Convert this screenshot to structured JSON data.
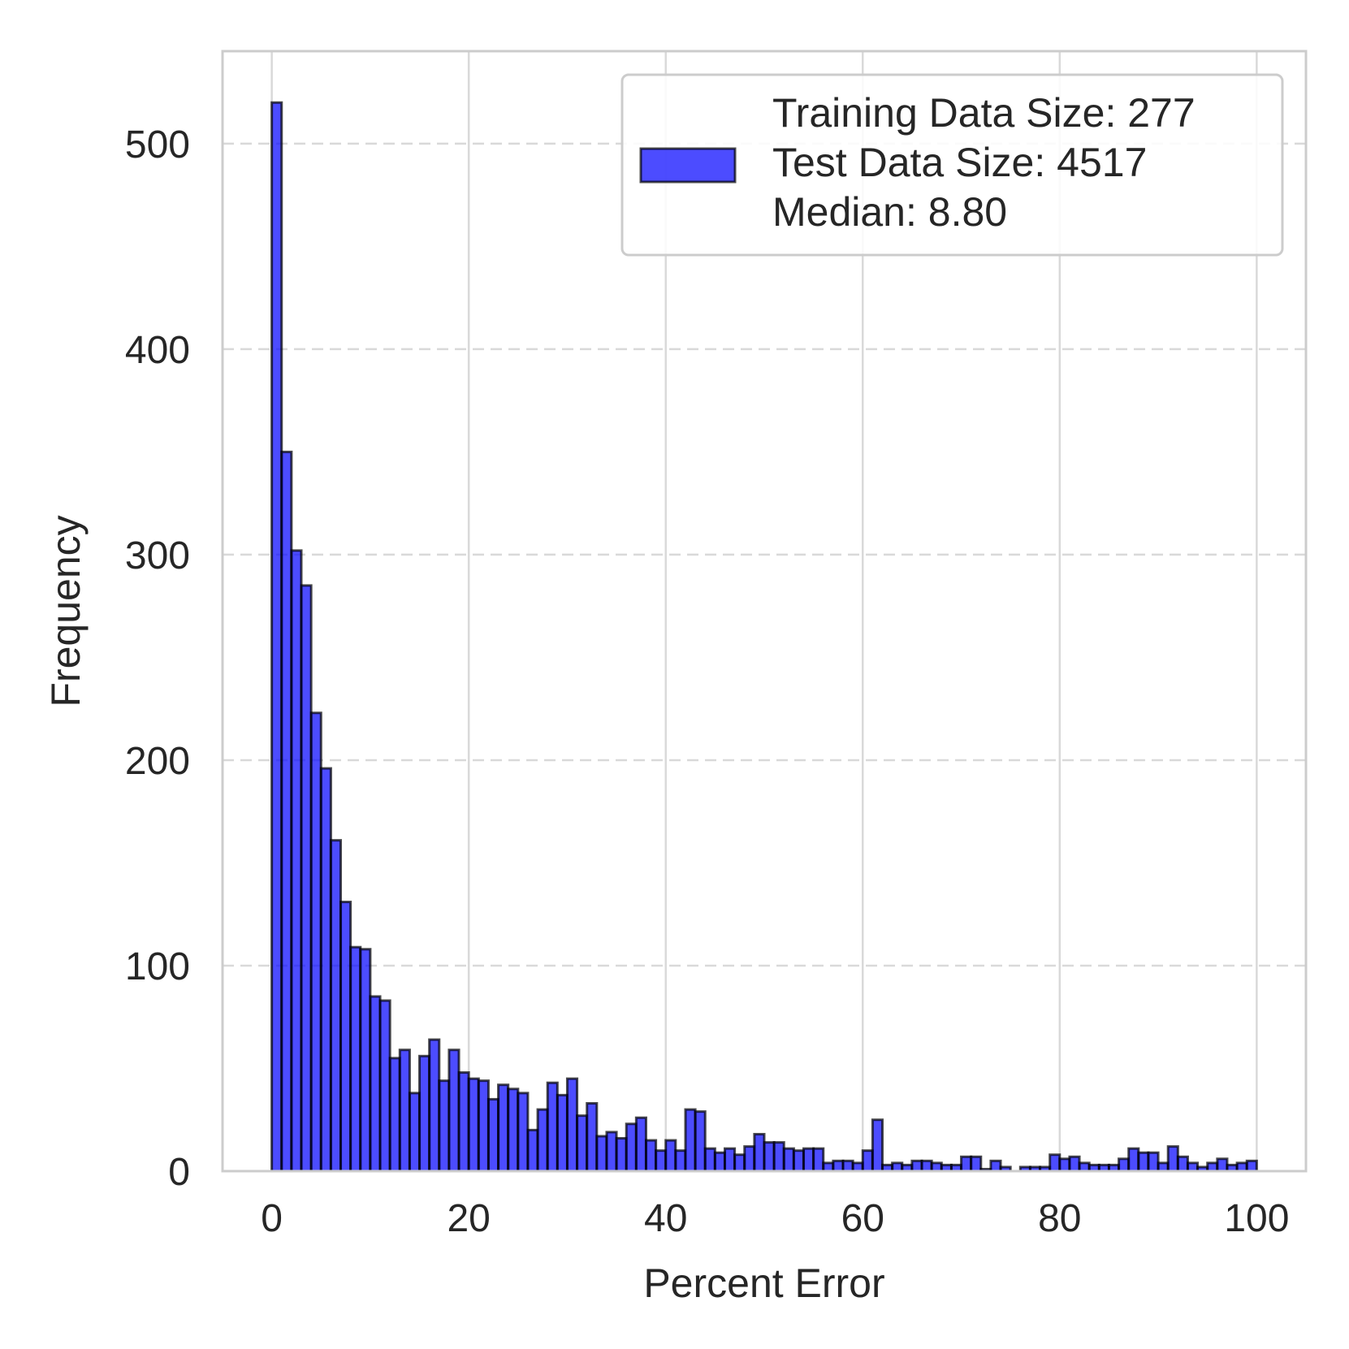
{
  "chart_data": {
    "type": "bar",
    "xlabel": "Percent Error",
    "ylabel": "Frequency",
    "xlim": [
      -5,
      105
    ],
    "ylim": [
      0,
      545
    ],
    "x_ticks": [
      0,
      20,
      40,
      60,
      80,
      100
    ],
    "y_ticks": [
      0,
      100,
      200,
      300,
      400,
      500
    ],
    "grid": {
      "x": "solid",
      "y": "dashed"
    },
    "legend": {
      "placement": "top-right",
      "lines": [
        "Training Data Size: 277",
        "Test Data Size: 4517",
        "Median: 8.80"
      ]
    },
    "bin_width": 1,
    "bin_start": 0,
    "values": [
      520,
      350,
      302,
      285,
      223,
      196,
      161,
      131,
      109,
      108,
      85,
      83,
      55,
      59,
      38,
      56,
      64,
      44,
      59,
      48,
      45,
      44,
      35,
      42,
      40,
      38,
      20,
      30,
      43,
      37,
      45,
      27,
      33,
      17,
      19,
      16,
      23,
      26,
      15,
      10,
      15,
      10,
      30,
      29,
      11,
      9,
      11,
      8,
      12,
      18,
      14,
      14,
      11,
      10,
      11,
      11,
      4,
      5,
      5,
      4,
      10,
      25,
      3,
      4,
      3,
      5,
      5,
      4,
      3,
      3,
      7,
      7,
      1,
      5,
      2,
      0,
      2,
      2,
      2,
      8,
      6,
      7,
      4,
      3,
      3,
      3,
      6,
      11,
      9,
      9,
      4,
      12,
      7,
      4,
      2,
      4,
      6,
      3,
      4,
      5
    ]
  },
  "colors": {
    "bar_fill": "#0000ff",
    "bar_opacity": 0.7,
    "bar_edge": "#000000",
    "grid": "#d9d9d9",
    "spine": "#cccccc",
    "text": "#262626"
  }
}
